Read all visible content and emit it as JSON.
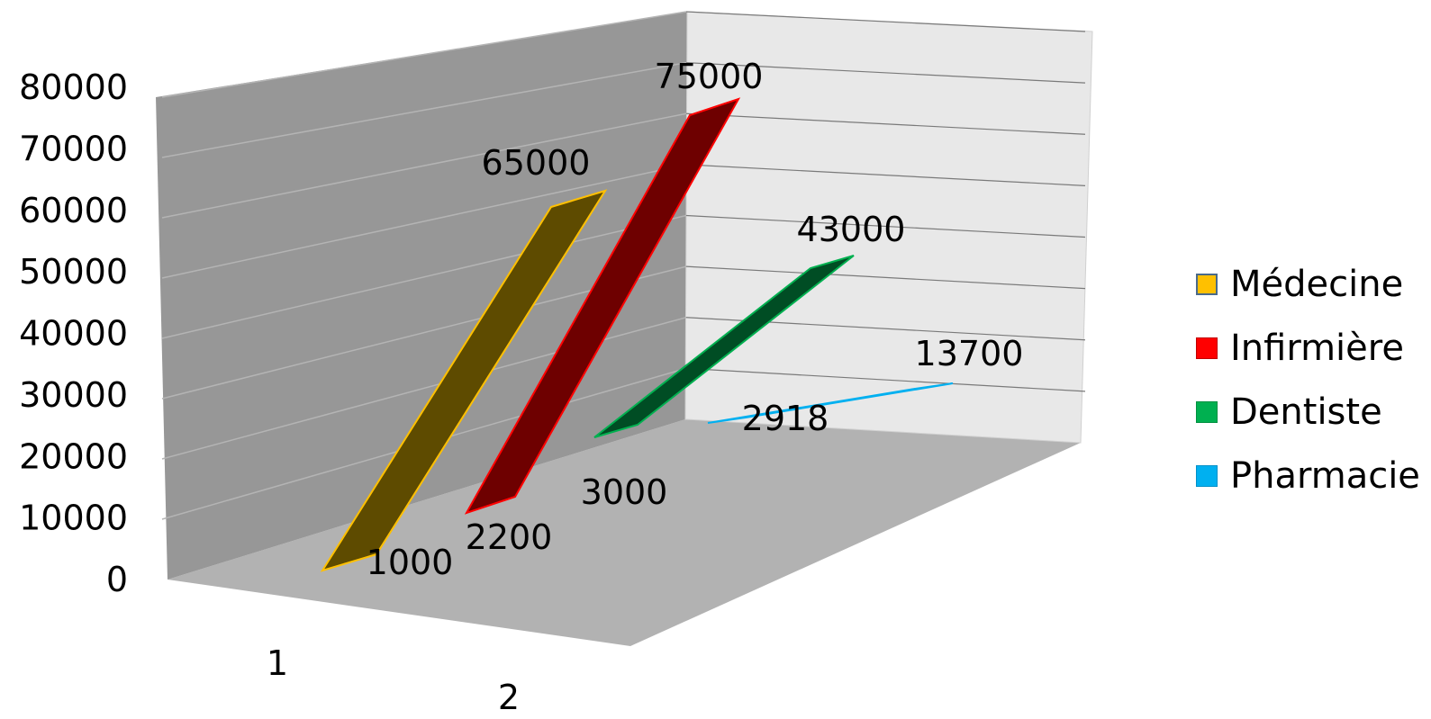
{
  "chart_data": {
    "type": "area",
    "variant": "3d-ribbon",
    "categories": [
      "1",
      "2"
    ],
    "yticks": [
      "0",
      "10000",
      "20000",
      "30000",
      "40000",
      "50000",
      "60000",
      "70000",
      "80000"
    ],
    "ylim": [
      0,
      80000
    ],
    "grid": true,
    "legend_position": "right",
    "series": [
      {
        "name": "Médecine",
        "values": [
          1000,
          65000
        ],
        "labels": [
          "1000",
          "65000"
        ],
        "color": "#FFC000",
        "shade": "#5E4B00"
      },
      {
        "name": "Infirmière",
        "values": [
          2200,
          75000
        ],
        "labels": [
          "2200",
          "75000"
        ],
        "color": "#FF0000",
        "shade": "#6E0000"
      },
      {
        "name": "Dentiste",
        "values": [
          3000,
          43000
        ],
        "labels": [
          "3000",
          "43000"
        ],
        "color": "#00B050",
        "shade": "#004D24"
      },
      {
        "name": "Pharmacie",
        "values": [
          2918,
          13700
        ],
        "labels": [
          "2918",
          "13700"
        ],
        "color": "#00B0F0",
        "shade": "#0E8FCC"
      }
    ]
  }
}
